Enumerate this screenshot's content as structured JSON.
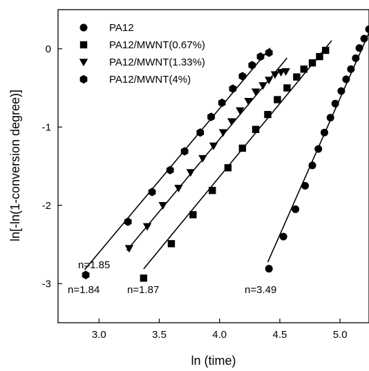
{
  "chart_data": {
    "type": "scatter",
    "title": "",
    "xlabel": "ln (time)",
    "ylabel": "ln[-ln(1-conversion degree)]",
    "xlim": [
      2.66,
      5.24
    ],
    "ylim": [
      -3.5,
      0.5
    ],
    "xticks": [
      3.0,
      3.5,
      4.0,
      4.5,
      5.0
    ],
    "xtick_labels": [
      "3.0",
      "3.5",
      "4.0",
      "4.5",
      "5.0"
    ],
    "yticks": [
      0,
      -1,
      -2,
      -3
    ],
    "ytick_labels": [
      "0",
      "-1",
      "-2",
      "-3"
    ],
    "grid": false,
    "legend_position": "top-left",
    "series": [
      {
        "name": "PA12",
        "marker": "circle",
        "color": "#000000",
        "x": [
          4.41,
          4.53,
          4.63,
          4.71,
          4.77,
          4.82,
          4.87,
          4.92,
          4.96,
          5.01,
          5.05,
          5.09,
          5.13,
          5.16,
          5.2,
          5.24
        ],
        "y": [
          -2.81,
          -2.4,
          -2.05,
          -1.75,
          -1.49,
          -1.28,
          -1.07,
          -0.88,
          -0.7,
          -0.54,
          -0.39,
          -0.26,
          -0.12,
          0.01,
          0.13,
          0.25
        ],
        "fit": {
          "slope": 3.49,
          "x_range": [
            4.4,
            5.24
          ]
        },
        "fit_label": "n=3.49"
      },
      {
        "name": "PA12/MWNT(0.67%)",
        "marker": "square",
        "color": "#000000",
        "x": [
          3.37,
          3.6,
          3.78,
          3.94,
          4.07,
          4.19,
          4.3,
          4.4,
          4.48,
          4.56,
          4.64,
          4.7,
          4.77,
          4.83,
          4.88
        ],
        "y": [
          -2.93,
          -2.49,
          -2.12,
          -1.81,
          -1.52,
          -1.27,
          -1.03,
          -0.84,
          -0.65,
          -0.5,
          -0.36,
          -0.26,
          -0.18,
          -0.1,
          -0.02
        ],
        "fit": {
          "slope": 1.87,
          "x_range": [
            3.37,
            4.93
          ]
        },
        "fit_label": "n=1.87"
      },
      {
        "name": "PA12/MWNT(1.33%)",
        "marker": "triangle-down",
        "color": "#000000",
        "x": [
          3.25,
          3.4,
          3.53,
          3.66,
          3.76,
          3.86,
          3.95,
          4.03,
          4.1,
          4.17,
          4.24,
          4.3,
          4.36,
          4.41,
          4.46,
          4.51,
          4.55
        ],
        "y": [
          -2.55,
          -2.27,
          -2.0,
          -1.78,
          -1.58,
          -1.4,
          -1.24,
          -1.07,
          -0.93,
          -0.79,
          -0.67,
          -0.55,
          -0.47,
          -0.4,
          -0.33,
          -0.3,
          -0.29
        ],
        "fit": {
          "slope": 1.85,
          "x_range": [
            3.23,
            4.56
          ]
        },
        "fit_label": "n=1.85"
      },
      {
        "name": "PA12/MWNT(4%)",
        "marker": "hexagon",
        "color": "#000000",
        "x": [
          2.89,
          3.24,
          3.44,
          3.59,
          3.71,
          3.84,
          3.93,
          4.02,
          4.11,
          4.19,
          4.27,
          4.34,
          4.41
        ],
        "y": [
          -2.89,
          -2.21,
          -1.83,
          -1.55,
          -1.31,
          -1.07,
          -0.87,
          -0.69,
          -0.51,
          -0.35,
          -0.21,
          -0.1,
          -0.05
        ],
        "fit": {
          "slope": 1.84,
          "x_range": [
            2.88,
            4.42
          ]
        },
        "fit_label": "n=1.84"
      }
    ]
  }
}
